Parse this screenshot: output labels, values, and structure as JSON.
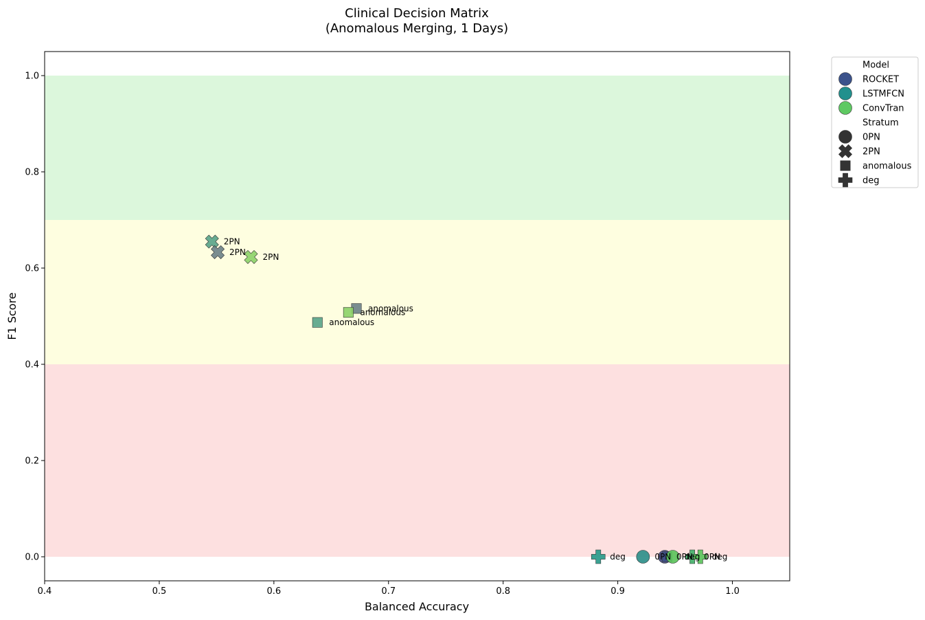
{
  "chart_data": {
    "type": "scatter",
    "title": "Clinical Decision Matrix",
    "subtitle": "(Anomalous Merging, 1 Days)",
    "xlabel": "Balanced Accuracy",
    "ylabel": "F1 Score",
    "xlim": [
      0.4,
      1.05
    ],
    "ylim": [
      -0.05,
      1.05
    ],
    "xticks": [
      "0.4",
      "0.5",
      "0.6",
      "0.7",
      "0.8",
      "0.9",
      "1.0"
    ],
    "yticks": [
      "0.0",
      "0.2",
      "0.4",
      "0.6",
      "0.8",
      "1.0"
    ],
    "grid": false,
    "zones": [
      {
        "y0": 0.7,
        "y1": 1.0,
        "color": "#dcf7dc"
      },
      {
        "y0": 0.4,
        "y1": 0.7,
        "color": "#fefee0"
      },
      {
        "y0": 0.0,
        "y1": 0.4,
        "color": "#fde0e0"
      }
    ],
    "points": [
      {
        "x": 0.546,
        "y": 0.655,
        "label": "2PN",
        "marker": "x",
        "color": "#5ba58a"
      },
      {
        "x": 0.551,
        "y": 0.633,
        "label": "2PN",
        "marker": "x",
        "color": "#6f8389"
      },
      {
        "x": 0.58,
        "y": 0.623,
        "label": "2PN",
        "marker": "x",
        "color": "#8ed36a"
      },
      {
        "x": 0.672,
        "y": 0.516,
        "label": "anomalous",
        "marker": "square",
        "color": "#6f8389"
      },
      {
        "x": 0.665,
        "y": 0.508,
        "label": "anomalous",
        "marker": "square",
        "color": "#8ed36a"
      },
      {
        "x": 0.638,
        "y": 0.487,
        "label": "anomalous",
        "marker": "square",
        "color": "#5ba58a"
      },
      {
        "x": 0.883,
        "y": 0.0,
        "label": "deg",
        "marker": "plus",
        "color": "#2a9a8a"
      },
      {
        "x": 0.922,
        "y": 0.0,
        "label": "0PN",
        "marker": "circle",
        "color": "#2f8f8a"
      },
      {
        "x": 0.941,
        "y": 0.0,
        "label": "0PN",
        "marker": "circle",
        "color": "#454a80"
      },
      {
        "x": 0.943,
        "y": 0.0,
        "label": "",
        "marker": "square",
        "color": "#3e4f86"
      },
      {
        "x": 0.948,
        "y": 0.0,
        "label": "deg",
        "marker": "circle",
        "color": "#5cc35c"
      },
      {
        "x": 0.965,
        "y": 0.0,
        "label": "0PN",
        "marker": "plus",
        "color": "#44b06a"
      },
      {
        "x": 0.972,
        "y": 0.0,
        "label": "deg",
        "marker": "plus",
        "color": "#5cc35c"
      }
    ],
    "legend": {
      "position": "outside-right",
      "model_title": "Model",
      "models": [
        {
          "name": "ROCKET",
          "color": "#3b528b"
        },
        {
          "name": "LSTMFCN",
          "color": "#21908d"
        },
        {
          "name": "ConvTran",
          "color": "#5ec962"
        }
      ],
      "stratum_title": "Stratum",
      "strata": [
        {
          "name": "0PN",
          "marker": "circle"
        },
        {
          "name": "2PN",
          "marker": "x"
        },
        {
          "name": "anomalous",
          "marker": "square"
        },
        {
          "name": "deg",
          "marker": "plus"
        }
      ]
    }
  }
}
